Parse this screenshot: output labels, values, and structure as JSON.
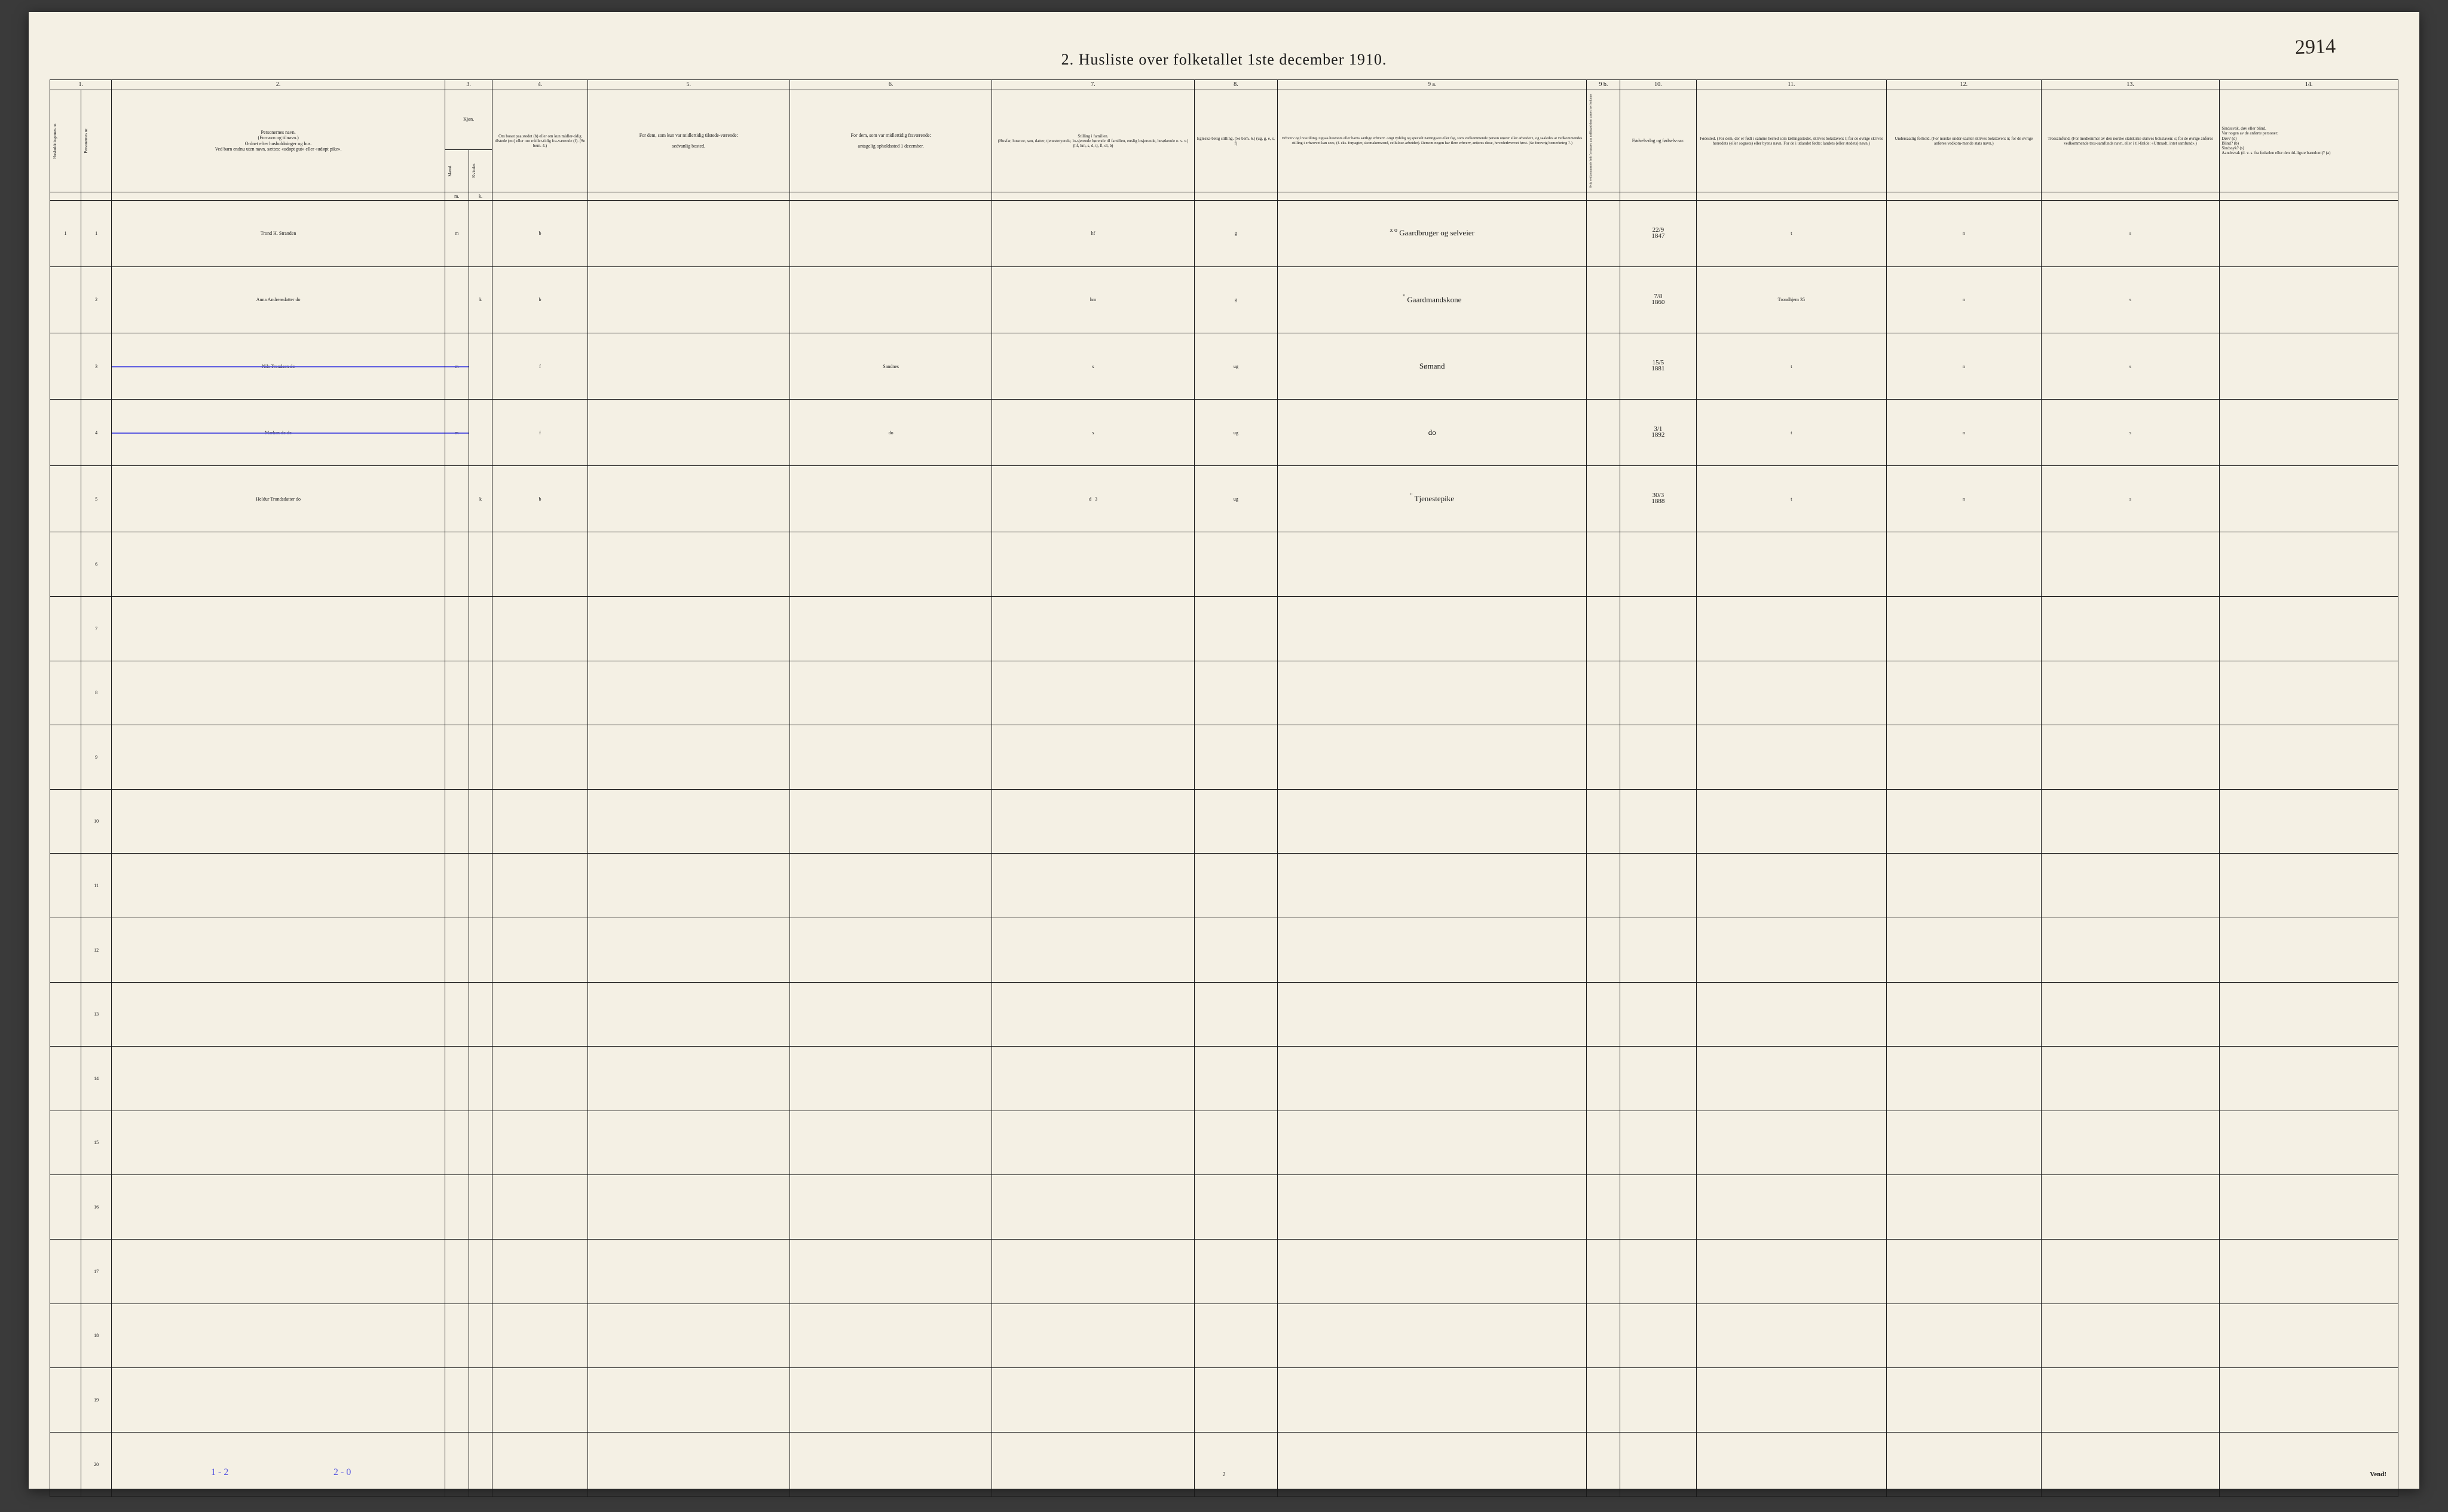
{
  "corner_annotation": "2914",
  "title": "2.  Husliste over folketallet 1ste december 1910.",
  "footer": {
    "annot_left": "1 - 2",
    "annot_mid": "2 - 0",
    "page_number": "2",
    "vend": "Vend!"
  },
  "columns": {
    "nums": [
      "1.",
      "2.",
      "3.",
      "4.",
      "5.",
      "6.",
      "7.",
      "8.",
      "9 a.",
      "9 b.",
      "10.",
      "11.",
      "12.",
      "13.",
      "14."
    ],
    "h1_vert": "Husholdningernes nr.",
    "h1b_vert": "Personernes nr.",
    "h2": "Personernes navn.\n(Fornavn og tilnavn.)\nOrdnet efter husholdninger og hus.\nVed barn endnu uten navn, sættes: «udøpt gut» eller «udøpt pike».",
    "h3": "Kjøn.",
    "h3_m_vert": "Mænd.",
    "h3_k_vert": "Kvinder.",
    "h4": "Om bosat paa stedet (b) eller om kun midler-tidig tilstede (mt) eller om midler-tidig fra-værende (f). (Se bem. 4.)",
    "h5": "For dem, som kun var midlertidig tilstede-værende:\n\nsedvanlig bosted.",
    "h6": "For dem, som var midlertidig fraværende:\n\nantagelig opholdssted 1 december.",
    "h7": "Stilling i familien.\n(Husfar, husmor, søn, datter, tjenestetyende, lo-sjerende hørende til familien, enslig losjerende, besøkende o. s. v.)\n(hf, hm, s, d, tj, fl, el, b)",
    "h8": "Egteska-belig stilling.\n(Se bem. 6.)\n(ug, g, e, s, f)",
    "h9a": "Erhverv og livsstilling.\nOgsaa husmors eller barns særlige erhverv. Angi tydelig og specielt næringsvei eller fag, som vedkommende person utøver eller arbeider i, og saaledes at vedkommendes stilling i erhvervet kan sees, (f. eks. forpagter, skomakersvend, cellulose-arbeider). Dersom nogen har flere erhverv, anføres disse, hovederhvervet først.\n(Se forøvrig bemerkning 7.)",
    "h9b_vert": "Hvis vedkommende helt forsørges paa tællingstidten sættes her kolonne",
    "h10": "Fødsels-dag og fødsels-aar.",
    "h11": "Fødested.\n(For dem, der er født i samme herred som tællingsstedet, skrives bokstaven: t; for de øvrige skrives herredets (eller sognets) eller byens navn. For de i utlandet fødte: landets (eller stedets) navn.)",
    "h12": "Undersaatlig forhold.\n(For norske under-saatter skrives bokstaven: n; for de øvrige anføres vedkom-mende stats navn.)",
    "h13": "Trossamfund.\n(For medlemmer av den norske statskirke skrives bokstaven: s; for de øvrige anføres vedkommende tros-samfunds navn, eller i til-fælde: «Uttraadt, intet samfund».)",
    "h14": "Sindssvak, døv eller blind.\nVar nogen av de anførte personer:\nDøv?       (d)\nBlind?     (b)\nSindssyk?  (s)\nAandssvak (d. v. s. fra fødselen eller den tid-ligste barndom)? (a)"
  },
  "rows": [
    {
      "hnr": "1",
      "pnr": "1",
      "name": "Trond H. Stranden",
      "sex_m": "m",
      "sex_k": "",
      "bosat": "b",
      "c5": "",
      "c6": "",
      "c7": "hf",
      "c8": "g",
      "c9a_note": "x o",
      "c9a": "Gaardbruger og selveier",
      "c10": "22/9 1847",
      "c11": "t",
      "c12": "n",
      "c13": "s",
      "c14": ""
    },
    {
      "hnr": "",
      "pnr": "2",
      "name": "Anna Andreasdatter do",
      "sex_m": "",
      "sex_k": "k",
      "bosat": "b",
      "c5": "",
      "c6": "",
      "c7": "hm",
      "c8": "g",
      "c9a_note": "\"",
      "c9a": "Gaardmandskone",
      "c10": "7/8 1860",
      "c11": "Trondhjem 35",
      "c12": "n",
      "c13": "s",
      "c14": ""
    },
    {
      "hnr": "",
      "pnr": "3",
      "name": "Nils Trondsen do",
      "strike": true,
      "sex_m": "m",
      "sex_k": "",
      "bosat": "f",
      "c5": "",
      "c6": "Sandnes",
      "c7": "s",
      "c8": "ug",
      "c9a_note": "",
      "c9a": "Sømand",
      "c10": "15/5 1881",
      "c11": "t",
      "c12": "n",
      "c13": "s",
      "c14": ""
    },
    {
      "hnr": "",
      "pnr": "4",
      "name": "Marken do        do",
      "strike": true,
      "sex_m": "m",
      "sex_k": "",
      "bosat": "f",
      "c5": "",
      "c6": "do",
      "c7": "s",
      "c8": "ug",
      "c9a_note": "",
      "c9a": "do",
      "c10": "3/1 1892",
      "c11": "t",
      "c12": "n",
      "c13": "s",
      "c14": ""
    },
    {
      "hnr": "",
      "pnr": "5",
      "name": "Heldur Trondsdatter do",
      "sex_m": "",
      "sex_k": "k",
      "bosat": "b",
      "c5": "",
      "c6": "",
      "c7": "d",
      "c7_extra": "3",
      "c8": "ug",
      "c9a_note": "\"",
      "c9a": "Tjenestepike",
      "c10": "30/3 1888",
      "c11": "t",
      "c12": "n",
      "c13": "s",
      "c14": ""
    }
  ],
  "empty_rows": [
    6,
    7,
    8,
    9,
    10,
    11,
    12,
    13,
    14,
    15,
    16,
    17,
    18,
    19,
    20
  ],
  "sub_header_mk": {
    "m": "m.",
    "k": "k."
  }
}
